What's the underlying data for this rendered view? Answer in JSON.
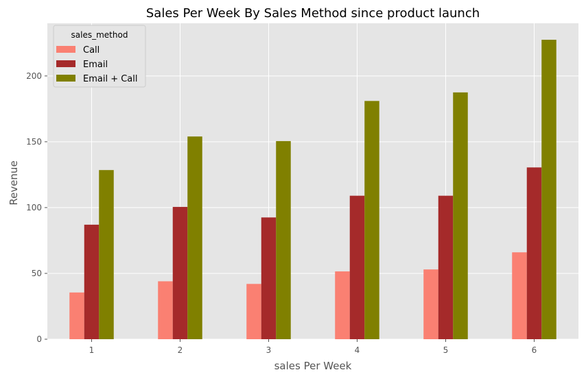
{
  "chart_data": {
    "type": "bar",
    "title": "Sales Per Week By Sales Method since product launch",
    "xlabel": "sales Per Week",
    "ylabel": "Revenue",
    "categories": [
      "1",
      "2",
      "3",
      "4",
      "5",
      "6"
    ],
    "ylim": [
      0,
      240
    ],
    "yticks": [
      0,
      50,
      100,
      150,
      200
    ],
    "grid": true,
    "legend": {
      "title": "sales_method",
      "position": "top-left"
    },
    "series": [
      {
        "name": "Call",
        "color": "#FA8072",
        "values": [
          35.5,
          44,
          42,
          51.5,
          53,
          66
        ]
      },
      {
        "name": "Email",
        "color": "#A52A2A",
        "values": [
          87,
          100.5,
          92.5,
          109,
          109,
          130.5
        ]
      },
      {
        "name": "Email + Call",
        "color": "#808000",
        "values": [
          128.5,
          154,
          150.5,
          181,
          187.5,
          227.5
        ]
      }
    ]
  }
}
